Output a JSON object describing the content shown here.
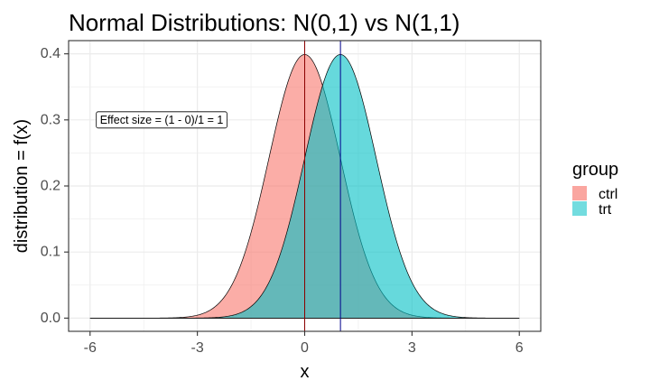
{
  "chart_data": {
    "type": "area",
    "title": "Normal Distributions: N(0,1) vs N(1,1)",
    "xlabel": "x",
    "ylabel": "distribution = f(x)",
    "xlim": [
      -6.6,
      6.6
    ],
    "ylim": [
      -0.02,
      0.42
    ],
    "x_ticks": [
      -6,
      -3,
      0,
      3,
      6
    ],
    "x_tick_labels": [
      "-6",
      "-3",
      "0",
      "3",
      "6"
    ],
    "y_ticks": [
      0.0,
      0.1,
      0.2,
      0.3,
      0.4
    ],
    "y_tick_labels": [
      "0.0",
      "0.1",
      "0.2",
      "0.3",
      "0.4"
    ],
    "x_range": [
      -6,
      6
    ],
    "grid": true,
    "legend": {
      "title": "group",
      "position": "right",
      "entries": [
        {
          "label": "ctrl",
          "color": "#F8766D"
        },
        {
          "label": "trt",
          "color": "#00BFC4"
        }
      ]
    },
    "series": [
      {
        "name": "ctrl",
        "distribution": "normal",
        "mean": 0,
        "sd": 1,
        "color": "#F8766D"
      },
      {
        "name": "trt",
        "distribution": "normal",
        "mean": 1,
        "sd": 1,
        "color": "#00BFC4"
      }
    ],
    "vlines": [
      {
        "x": 0,
        "color": "#8B0000"
      },
      {
        "x": 1,
        "color": "#00008B"
      }
    ],
    "annotation": {
      "text": "Effect size = (1 - 0)/1 = 1",
      "x": -4,
      "y": 0.3
    }
  }
}
